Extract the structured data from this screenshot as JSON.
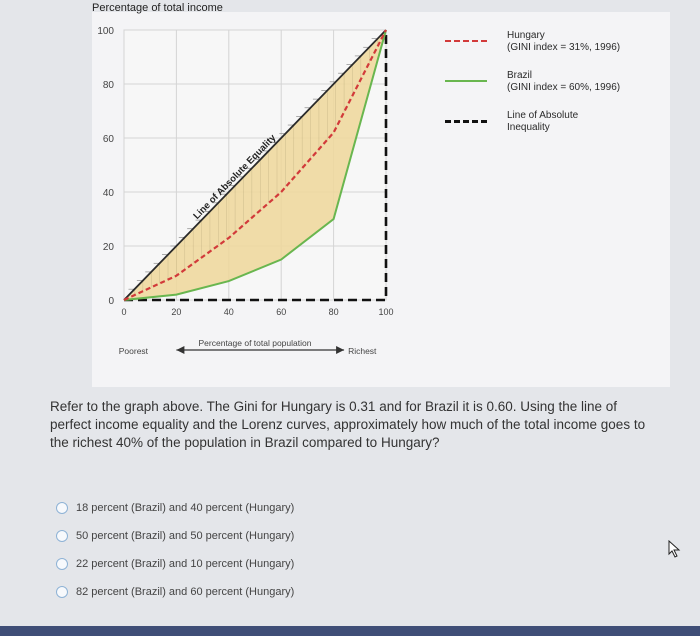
{
  "chart_data": {
    "type": "line",
    "ylabel": "Percentage of total income",
    "xlabel": "Percentage of total population",
    "x_ticks": [
      "0",
      "20",
      "40",
      "60",
      "80",
      "100"
    ],
    "y_ticks": [
      "100",
      "80",
      "60",
      "40",
      "20",
      "0"
    ],
    "xlim": [
      0,
      100
    ],
    "ylim": [
      0,
      100
    ],
    "axis_end_labels": {
      "left": "Poorest",
      "right": "Richest"
    },
    "diagonal_label": "Line of Absolute Equality",
    "series": [
      {
        "name": "Hungary (GINI index = 31%, 1996)",
        "color": "#d23a3a",
        "style": "dashed",
        "x": [
          0,
          20,
          40,
          60,
          80,
          100
        ],
        "y": [
          0,
          9,
          23,
          40,
          62,
          100
        ]
      },
      {
        "name": "Brazil (GINI index = 60%, 1996)",
        "color": "#69b64f",
        "style": "solid",
        "x": [
          0,
          20,
          40,
          60,
          80,
          100
        ],
        "y": [
          0,
          2,
          7,
          15,
          30,
          100
        ]
      },
      {
        "name": "Line of Absolute Inequality",
        "color": "#111111",
        "style": "dashed",
        "x": [
          0,
          100,
          100
        ],
        "y": [
          0,
          0,
          100
        ]
      },
      {
        "name": "Line of Absolute Equality",
        "color": "#2a2a2a",
        "style": "solid",
        "x": [
          0,
          100
        ],
        "y": [
          0,
          100
        ]
      }
    ]
  },
  "legend": [
    {
      "line1": "Hungary",
      "line2": "(GINI index = 31%, 1996)",
      "color": "#d23a3a",
      "style": "dashed"
    },
    {
      "line1": "Brazil",
      "line2": "(GINI index = 60%, 1996)",
      "color": "#69b64f",
      "style": "solid"
    },
    {
      "line1": "Line of Absolute",
      "line2": "Inequality",
      "color": "#111111",
      "style": "dashed"
    }
  ],
  "question": {
    "text": "Refer to the graph above. The Gini for Hungary is 0.31 and for Brazil it is 0.60. Using the line of perfect income equality and the Lorenz curves, approximately how much of the total income goes to the richest 40% of the population in Brazil compared to Hungary?"
  },
  "options": [
    "18 percent (Brazil) and 40 percent (Hungary)",
    "50 percent (Brazil) and 50 percent (Hungary)",
    "22 percent (Brazil) and 10 percent (Hungary)",
    "82 percent (Brazil) and 60 percent (Hungary)"
  ]
}
